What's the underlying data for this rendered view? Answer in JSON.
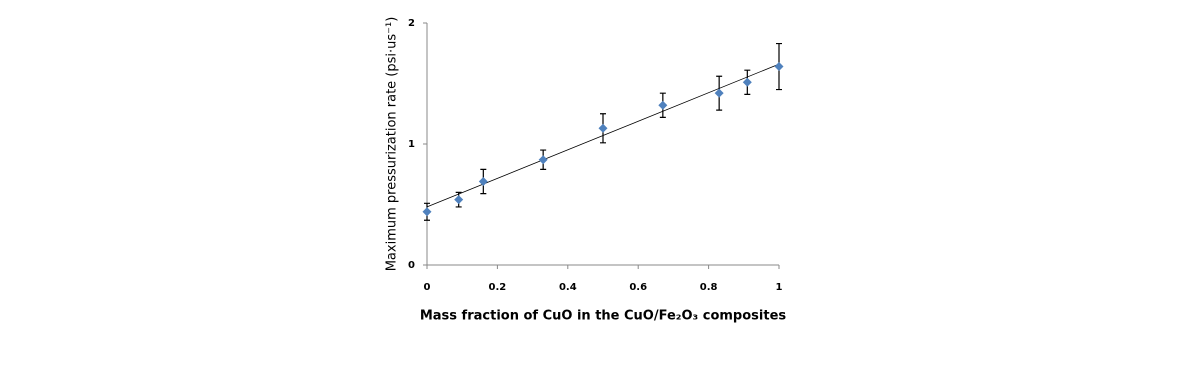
{
  "chart_data": {
    "type": "scatter",
    "x_label": "Mass fraction of CuO in the CuO/Fe₂O₃ composites",
    "y_label": "Maximum pressurization rate  (psi·us⁻¹)",
    "x": [
      0,
      0.09,
      0.16,
      0.33,
      0.5,
      0.67,
      0.83,
      0.91,
      1
    ],
    "values": [
      0.44,
      0.54,
      0.69,
      0.87,
      1.13,
      1.32,
      1.42,
      1.51,
      1.64
    ],
    "errors": [
      0.07,
      0.06,
      0.1,
      0.08,
      0.12,
      0.1,
      0.14,
      0.1,
      0.19
    ],
    "color": "#4f81bd",
    "trendline": {
      "x": [
        0,
        1
      ],
      "values": [
        0.48,
        1.66
      ]
    },
    "xlim": [
      0,
      1
    ],
    "xticks": [
      0,
      0.2,
      0.4,
      0.6,
      0.8,
      1
    ],
    "ylim": [
      0,
      2
    ],
    "yticks": [
      0,
      1,
      2
    ],
    "grid": false
  }
}
